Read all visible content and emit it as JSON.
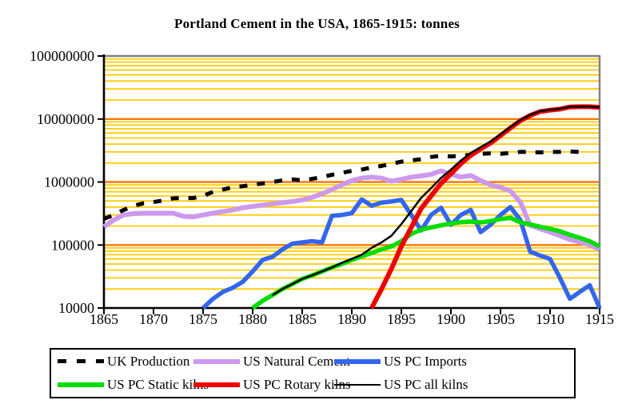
{
  "title": "Portland Cement in the USA, 1865-1915: tonnes",
  "colors": {
    "minor_gridline": "#FFCC00",
    "major_gridline": "#FF7800",
    "plot_border_gray": "#808080",
    "axis_black": "#000000",
    "background": "#FFFFFF"
  },
  "legend": {
    "items": [
      {
        "label": "UK Production",
        "series": 0
      },
      {
        "label": "US Natural Cement",
        "series": 1
      },
      {
        "label": "US PC Imports",
        "series": 2
      },
      {
        "label": "US PC Static kilns",
        "series": 3
      },
      {
        "label": "US PC Rotary kilns",
        "series": 4
      },
      {
        "label": "US PC all kilns",
        "series": 5
      }
    ]
  },
  "chart_data": {
    "type": "line",
    "title": "Portland Cement in the USA, 1865-1915: tonnes",
    "xlabel": "",
    "ylabel": "",
    "x_range": [
      1865,
      1915
    ],
    "x_ticks": [
      1865,
      1870,
      1875,
      1880,
      1885,
      1890,
      1895,
      1900,
      1905,
      1910,
      1915
    ],
    "y_axis": {
      "scale": "log",
      "range": [
        10000,
        100000000
      ]
    },
    "y_ticks": [
      100000000,
      10000000,
      1000000,
      100000,
      10000
    ],
    "grid": {
      "minor_color": "#FFCC00",
      "major_color": "#FF7800",
      "vertical": false
    },
    "legend_position": "bottom",
    "series": [
      {
        "name": "UK Production",
        "color": "#000000",
        "width": 5,
        "dash": "10 12",
        "start": 1865,
        "values": [
          260000,
          300000,
          360000,
          420000,
          460000,
          480000,
          510000,
          550000,
          560000,
          555000,
          600000,
          700000,
          760000,
          830000,
          860000,
          900000,
          950000,
          1000000,
          1060000,
          1100000,
          1060000,
          1120000,
          1200000,
          1300000,
          1400000,
          1500000,
          1580000,
          1700000,
          1800000,
          1950000,
          2100000,
          2200000,
          2300000,
          2500000,
          2600000,
          2550000,
          2600000,
          2700000,
          2800000,
          2850000,
          2800000,
          2900000,
          3000000,
          3000000,
          2950000,
          3000000,
          3000000,
          3050000,
          3000000
        ]
      },
      {
        "name": "US Natural Cement",
        "color": "#CC99EE",
        "width": 6,
        "start": 1865,
        "values": [
          195000,
          250000,
          300000,
          315000,
          320000,
          320000,
          320000,
          320000,
          285000,
          280000,
          300000,
          320000,
          340000,
          360000,
          390000,
          410000,
          430000,
          450000,
          470000,
          490000,
          520000,
          570000,
          650000,
          760000,
          900000,
          1050000,
          1150000,
          1200000,
          1150000,
          1030000,
          1100000,
          1200000,
          1250000,
          1320000,
          1500000,
          1320000,
          1200000,
          1270000,
          1050000,
          900000,
          820000,
          720000,
          480000,
          205000,
          180000,
          160000,
          140000,
          122000,
          112000,
          100000,
          85000
        ]
      },
      {
        "name": "US PC Imports",
        "color": "#3366EE",
        "width": 5.5,
        "start": 1875,
        "values": [
          10000,
          14000,
          18000,
          21000,
          26000,
          38000,
          58000,
          65000,
          85000,
          105000,
          110000,
          115000,
          110000,
          290000,
          300000,
          320000,
          530000,
          420000,
          470000,
          490000,
          520000,
          300000,
          170000,
          300000,
          390000,
          210000,
          300000,
          360000,
          160000,
          210000,
          300000,
          400000,
          250000,
          78000,
          68000,
          60000,
          30000,
          14000,
          18000,
          23000,
          10000
        ]
      },
      {
        "name": "US PC Static kilns",
        "color": "#00DD00",
        "width": 5.5,
        "start": 1880,
        "values": [
          10000,
          13000,
          16000,
          20000,
          24000,
          29000,
          33000,
          38000,
          44000,
          50000,
          58000,
          66000,
          75000,
          85000,
          95000,
          115000,
          150000,
          175000,
          190000,
          205000,
          220000,
          230000,
          235000,
          228000,
          240000,
          258000,
          270000,
          230000,
          212000,
          195000,
          180000,
          165000,
          145000,
          130000,
          115000,
          95000
        ]
      },
      {
        "name": "US PC Rotary kilns",
        "color": "#EE0000",
        "width": 6,
        "start": 1892,
        "values": [
          10000,
          20000,
          42000,
          95000,
          190000,
          380000,
          600000,
          950000,
          1350000,
          1950000,
          2650000,
          3350000,
          4150000,
          5450000,
          7200000,
          9400000,
          11400000,
          13100000,
          13800000,
          14350000,
          15550000,
          15650000,
          15650000,
          15250000
        ]
      },
      {
        "name": "US PC all kilns",
        "color": "#000000",
        "width": 2.5,
        "start": 1882,
        "values": [
          16000,
          20000,
          24000,
          29000,
          33000,
          38000,
          44000,
          52000,
          60000,
          70000,
          90000,
          110000,
          140000,
          215000,
          345000,
          560000,
          800000,
          1160000,
          1570000,
          2180000,
          2890000,
          3580000,
          4390000,
          5710000,
          7470000,
          9630000,
          11610000,
          13300000,
          13980000,
          14520000,
          15700000,
          15780000,
          15760000,
          15340000
        ]
      }
    ]
  }
}
